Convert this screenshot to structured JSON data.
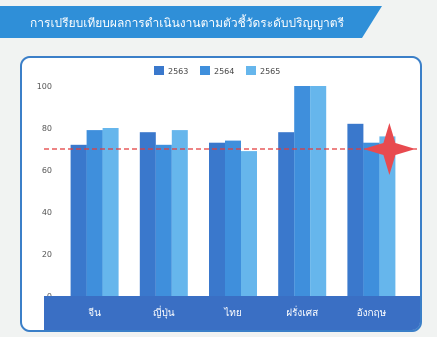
{
  "banner": {
    "title": "การเปรียบเทียบผลการดำเนินงานตามตัวชี้วัดระดับปริญญาตรี",
    "color": "#2f8fd8"
  },
  "chart_data": {
    "type": "bar",
    "categories": [
      "จีน",
      "ญี่ปุ่น",
      "ไทย",
      "ฝรั่งเศส",
      "อังกฤษ"
    ],
    "series": [
      {
        "name": "2563",
        "values": [
          72,
          78,
          73,
          78,
          82
        ],
        "color": "#3a78cc"
      },
      {
        "name": "2564",
        "values": [
          79,
          72,
          74,
          100,
          73
        ],
        "color": "#3f8fdc"
      },
      {
        "name": "2565",
        "values": [
          80,
          79,
          69,
          100,
          76
        ],
        "color": "#66b6ec"
      }
    ],
    "yticks": [
      0,
      20,
      40,
      60,
      80,
      100
    ],
    "ylim": [
      0,
      100
    ],
    "reference_line": {
      "value": 70,
      "color": "#e23b3b",
      "style": "dashed"
    },
    "marker": {
      "shape": "four-point-star",
      "category": "อังกฤษ",
      "value": 70,
      "color": "#e84a4f"
    },
    "legend_position": "top-center",
    "category_band_color": "#3a6fc4",
    "grid": false
  }
}
